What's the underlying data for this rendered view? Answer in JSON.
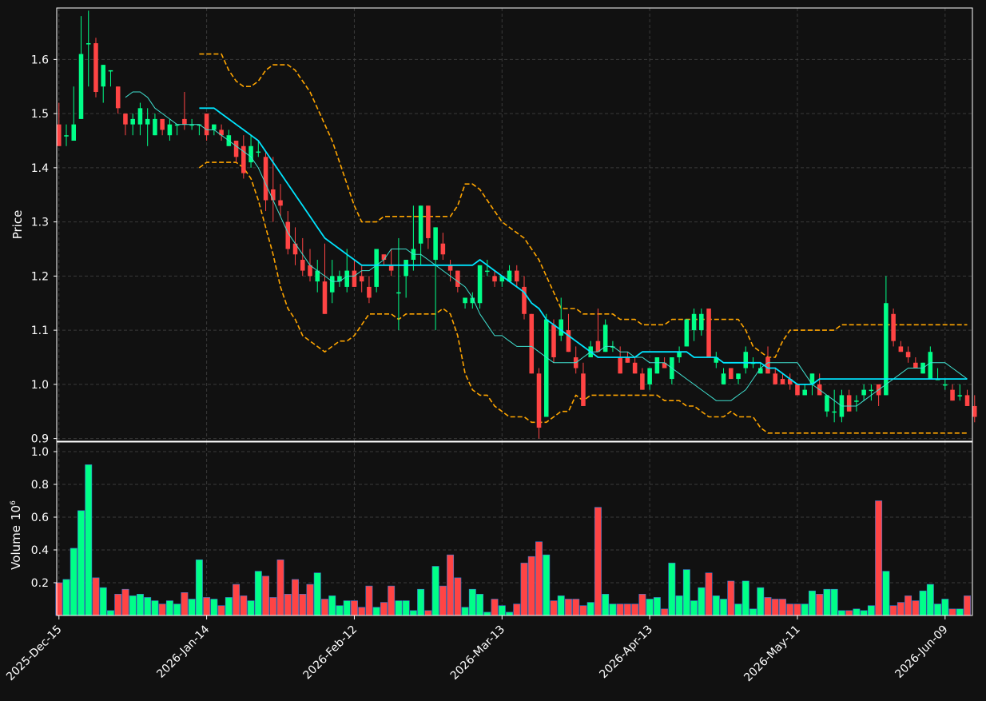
{
  "colors": {
    "background": "#111111",
    "up": "#00ff88",
    "down": "#ff4444",
    "grid": "#3a3a3a",
    "axis": "#ffffff",
    "text": "#ffffff",
    "sma_fast": "#40e0d0",
    "sma_slow": "#00e5ff",
    "bollinger": "#ffa500"
  },
  "chart_data": {
    "type": "candlestick",
    "ylabel_price": "Price",
    "ylabel_volume": "Volume",
    "volume_exponent": "6",
    "grid": true,
    "price_ylim": [
      0.895,
      1.695
    ],
    "price_yticks": [
      "0.9",
      "1.0",
      "1.1",
      "1.2",
      "1.3",
      "1.4",
      "1.5",
      "1.6"
    ],
    "volume_ylim": [
      0,
      1.0
    ],
    "volume_yticks": [
      "0.2",
      "0.4",
      "0.6",
      "0.8",
      "1.0"
    ],
    "xtick_labels": [
      {
        "index": 0,
        "label": "2025-Dec-15"
      },
      {
        "index": 20,
        "label": "2026-Jan-14"
      },
      {
        "index": 40,
        "label": "2026-Feb-12"
      },
      {
        "index": 60,
        "label": "2026-Mar-13"
      },
      {
        "index": 80,
        "label": "2026-Apr-13"
      },
      {
        "index": 100,
        "label": "2026-May-11"
      },
      {
        "index": 120,
        "label": "2026-Jun-09"
      }
    ],
    "x_range": [
      -0.3,
      123.7
    ],
    "ohlc": [
      [
        1.48,
        1.52,
        1.44,
        1.44
      ],
      [
        1.46,
        1.48,
        1.44,
        1.46
      ],
      [
        1.45,
        1.55,
        1.45,
        1.48
      ],
      [
        1.49,
        1.68,
        1.49,
        1.61
      ],
      [
        1.63,
        1.69,
        1.55,
        1.63
      ],
      [
        1.63,
        1.64,
        1.53,
        1.54
      ],
      [
        1.55,
        1.59,
        1.52,
        1.59
      ],
      [
        1.58,
        1.58,
        1.55,
        1.58
      ],
      [
        1.55,
        1.55,
        1.5,
        1.51
      ],
      [
        1.5,
        1.5,
        1.46,
        1.48
      ],
      [
        1.48,
        1.5,
        1.46,
        1.49
      ],
      [
        1.48,
        1.52,
        1.46,
        1.51
      ],
      [
        1.48,
        1.51,
        1.44,
        1.49
      ],
      [
        1.46,
        1.5,
        1.46,
        1.49
      ],
      [
        1.49,
        1.49,
        1.46,
        1.47
      ],
      [
        1.46,
        1.49,
        1.45,
        1.48
      ],
      [
        1.48,
        1.48,
        1.46,
        1.48
      ],
      [
        1.49,
        1.54,
        1.47,
        1.48
      ],
      [
        1.48,
        1.49,
        1.47,
        1.48
      ],
      [
        1.48,
        1.48,
        1.46,
        1.48
      ],
      [
        1.5,
        1.5,
        1.45,
        1.46
      ],
      [
        1.47,
        1.48,
        1.46,
        1.48
      ],
      [
        1.47,
        1.48,
        1.45,
        1.46
      ],
      [
        1.44,
        1.47,
        1.44,
        1.46
      ],
      [
        1.45,
        1.45,
        1.41,
        1.42
      ],
      [
        1.44,
        1.46,
        1.38,
        1.39
      ],
      [
        1.41,
        1.46,
        1.4,
        1.44
      ],
      [
        1.43,
        1.45,
        1.42,
        1.43
      ],
      [
        1.42,
        1.43,
        1.32,
        1.34
      ],
      [
        1.36,
        1.42,
        1.3,
        1.34
      ],
      [
        1.34,
        1.37,
        1.31,
        1.33
      ],
      [
        1.3,
        1.32,
        1.24,
        1.25
      ],
      [
        1.26,
        1.29,
        1.22,
        1.24
      ],
      [
        1.23,
        1.27,
        1.2,
        1.21
      ],
      [
        1.22,
        1.25,
        1.19,
        1.2
      ],
      [
        1.19,
        1.23,
        1.17,
        1.21
      ],
      [
        1.19,
        1.26,
        1.13,
        1.13
      ],
      [
        1.17,
        1.23,
        1.15,
        1.2
      ],
      [
        1.19,
        1.21,
        1.18,
        1.2
      ],
      [
        1.18,
        1.25,
        1.17,
        1.21
      ],
      [
        1.21,
        1.23,
        1.18,
        1.18
      ],
      [
        1.2,
        1.22,
        1.17,
        1.19
      ],
      [
        1.18,
        1.2,
        1.15,
        1.16
      ],
      [
        1.18,
        1.25,
        1.17,
        1.25
      ],
      [
        1.24,
        1.24,
        1.22,
        1.23
      ],
      [
        1.22,
        1.25,
        1.2,
        1.21
      ],
      [
        1.17,
        1.27,
        1.1,
        1.17
      ],
      [
        1.2,
        1.23,
        1.16,
        1.23
      ],
      [
        1.23,
        1.33,
        1.21,
        1.25
      ],
      [
        1.26,
        1.33,
        1.22,
        1.33
      ],
      [
        1.33,
        1.33,
        1.25,
        1.27
      ],
      [
        1.23,
        1.29,
        1.1,
        1.29
      ],
      [
        1.26,
        1.28,
        1.23,
        1.24
      ],
      [
        1.22,
        1.23,
        1.19,
        1.21
      ],
      [
        1.21,
        1.21,
        1.17,
        1.18
      ],
      [
        1.15,
        1.16,
        1.14,
        1.16
      ],
      [
        1.15,
        1.17,
        1.14,
        1.16
      ],
      [
        1.15,
        1.22,
        1.14,
        1.22
      ],
      [
        1.21,
        1.23,
        1.2,
        1.21
      ],
      [
        1.2,
        1.21,
        1.18,
        1.19
      ],
      [
        1.19,
        1.2,
        1.18,
        1.2
      ],
      [
        1.19,
        1.22,
        1.19,
        1.21
      ],
      [
        1.21,
        1.22,
        1.18,
        1.19
      ],
      [
        1.18,
        1.2,
        1.12,
        1.13
      ],
      [
        1.13,
        1.13,
        1.02,
        1.02
      ],
      [
        1.02,
        1.03,
        0.9,
        0.92
      ],
      [
        0.94,
        1.13,
        0.94,
        1.12
      ],
      [
        1.11,
        1.12,
        1.04,
        1.05
      ],
      [
        1.09,
        1.16,
        1.08,
        1.12
      ],
      [
        1.1,
        1.13,
        1.06,
        1.06
      ],
      [
        1.05,
        1.07,
        1.02,
        1.03
      ],
      [
        1.02,
        1.04,
        0.96,
        0.96
      ],
      [
        1.05,
        1.08,
        1.05,
        1.07
      ],
      [
        1.08,
        1.14,
        1.06,
        1.06
      ],
      [
        1.06,
        1.12,
        1.06,
        1.11
      ],
      [
        1.07,
        1.08,
        1.06,
        1.07
      ],
      [
        1.05,
        1.07,
        1.02,
        1.02
      ],
      [
        1.05,
        1.06,
        1.04,
        1.04
      ],
      [
        1.04,
        1.05,
        1.02,
        1.02
      ],
      [
        1.02,
        1.03,
        0.99,
        0.99
      ],
      [
        1.0,
        1.03,
        0.99,
        1.03
      ],
      [
        1.02,
        1.05,
        1.02,
        1.05
      ],
      [
        1.04,
        1.05,
        1.03,
        1.03
      ],
      [
        1.01,
        1.05,
        1.0,
        1.05
      ],
      [
        1.05,
        1.07,
        1.04,
        1.06
      ],
      [
        1.07,
        1.12,
        1.07,
        1.12
      ],
      [
        1.1,
        1.14,
        1.08,
        1.13
      ],
      [
        1.1,
        1.14,
        1.09,
        1.13
      ],
      [
        1.14,
        1.14,
        1.05,
        1.05
      ],
      [
        1.04,
        1.06,
        1.03,
        1.05
      ],
      [
        1.0,
        1.03,
        1.0,
        1.02
      ],
      [
        1.03,
        1.03,
        1.01,
        1.01
      ],
      [
        1.01,
        1.02,
        1.0,
        1.02
      ],
      [
        1.03,
        1.07,
        1.02,
        1.06
      ],
      [
        1.04,
        1.05,
        1.03,
        1.04
      ],
      [
        1.02,
        1.04,
        1.02,
        1.03
      ],
      [
        1.05,
        1.07,
        1.02,
        1.02
      ],
      [
        1.02,
        1.03,
        1.0,
        1.0
      ],
      [
        1.01,
        1.02,
        1.0,
        1.0
      ],
      [
        1.01,
        1.02,
        0.99,
        1.0
      ],
      [
        1.0,
        1.0,
        0.98,
        0.98
      ],
      [
        0.98,
        1.0,
        0.98,
        0.99
      ],
      [
        1.0,
        1.02,
        0.98,
        1.02
      ],
      [
        1.0,
        1.02,
        0.98,
        0.98
      ],
      [
        0.95,
        0.98,
        0.94,
        0.98
      ],
      [
        0.95,
        0.99,
        0.93,
        0.95
      ],
      [
        0.94,
        0.99,
        0.93,
        0.98
      ],
      [
        0.98,
        0.99,
        0.95,
        0.95
      ],
      [
        0.97,
        0.98,
        0.95,
        0.97
      ],
      [
        0.98,
        1.0,
        0.97,
        0.99
      ],
      [
        0.99,
        1.0,
        0.97,
        0.99
      ],
      [
        1.0,
        1.0,
        0.96,
        0.98
      ],
      [
        0.98,
        1.2,
        0.98,
        1.15
      ],
      [
        1.13,
        1.14,
        1.07,
        1.08
      ],
      [
        1.07,
        1.08,
        1.06,
        1.06
      ],
      [
        1.06,
        1.07,
        1.04,
        1.05
      ],
      [
        1.04,
        1.05,
        1.03,
        1.03
      ],
      [
        1.02,
        1.04,
        1.02,
        1.04
      ],
      [
        1.01,
        1.07,
        1.01,
        1.06
      ],
      [
        1.01,
        1.03,
        1.01,
        1.01
      ],
      [
        1.0,
        1.01,
        0.99,
        1.0
      ],
      [
        0.99,
        1.0,
        0.97,
        0.97
      ],
      [
        0.98,
        1.0,
        0.97,
        0.98
      ],
      [
        0.98,
        0.99,
        0.96,
        0.96
      ],
      [
        0.96,
        0.98,
        0.93,
        0.94
      ]
    ],
    "volume": [
      0.2,
      0.22,
      0.41,
      0.64,
      0.92,
      0.23,
      0.17,
      0.03,
      0.13,
      0.16,
      0.12,
      0.13,
      0.11,
      0.09,
      0.07,
      0.09,
      0.07,
      0.14,
      0.1,
      0.34,
      0.11,
      0.1,
      0.06,
      0.11,
      0.19,
      0.12,
      0.09,
      0.27,
      0.24,
      0.11,
      0.34,
      0.13,
      0.22,
      0.13,
      0.19,
      0.26,
      0.1,
      0.12,
      0.06,
      0.09,
      0.09,
      0.05,
      0.18,
      0.05,
      0.08,
      0.18,
      0.09,
      0.09,
      0.03,
      0.16,
      0.03,
      0.3,
      0.18,
      0.37,
      0.23,
      0.05,
      0.16,
      0.13,
      0.02,
      0.1,
      0.06,
      0.02,
      0.07,
      0.32,
      0.36,
      0.45,
      0.37,
      0.09,
      0.12,
      0.1,
      0.1,
      0.06,
      0.08,
      0.66,
      0.13,
      0.07,
      0.07,
      0.07,
      0.07,
      0.13,
      0.1,
      0.11,
      0.04,
      0.32,
      0.12,
      0.28,
      0.09,
      0.17,
      0.26,
      0.12,
      0.1,
      0.21,
      0.07,
      0.21,
      0.04,
      0.17,
      0.11,
      0.1,
      0.1,
      0.07,
      0.07,
      0.07,
      0.15,
      0.13,
      0.16,
      0.16,
      0.03,
      0.03,
      0.04,
      0.03,
      0.06,
      0.7,
      0.27,
      0.06,
      0.08,
      0.12,
      0.09,
      0.15,
      0.19,
      0.07,
      0.1,
      0.04,
      0.04,
      0.12
    ],
    "sma_fast_start": 9,
    "sma_fast": [
      1.53,
      1.54,
      1.54,
      1.53,
      1.51,
      1.5,
      1.49,
      1.48,
      1.48,
      1.48,
      1.48,
      1.47,
      1.47,
      1.46,
      1.45,
      1.44,
      1.43,
      1.42,
      1.4,
      1.37,
      1.34,
      1.31,
      1.28,
      1.26,
      1.24,
      1.22,
      1.21,
      1.2,
      1.19,
      1.19,
      1.2,
      1.2,
      1.21,
      1.21,
      1.22,
      1.23,
      1.25,
      1.25,
      1.25,
      1.24,
      1.24,
      1.23,
      1.22,
      1.21,
      1.2,
      1.19,
      1.18,
      1.16,
      1.13,
      1.11,
      1.09,
      1.09,
      1.08,
      1.07,
      1.07,
      1.07,
      1.06,
      1.05,
      1.04,
      1.04,
      1.04,
      1.04,
      1.05,
      1.06,
      1.06,
      1.07,
      1.07,
      1.06,
      1.06,
      1.05,
      1.05,
      1.04,
      1.04,
      1.04,
      1.03,
      1.02,
      1.01,
      1.0,
      0.99,
      0.98,
      0.97,
      0.97,
      0.97,
      0.98,
      0.99,
      1.01,
      1.03,
      1.04,
      1.04,
      1.04,
      1.04,
      1.04,
      1.02,
      1.0,
      0.99,
      0.98,
      0.97,
      0.96,
      0.96,
      0.96,
      0.97,
      0.98,
      0.99,
      1.0,
      1.01,
      1.02,
      1.03,
      1.03,
      1.03,
      1.04,
      1.04,
      1.04,
      1.03,
      1.02,
      1.01
    ],
    "sma_slow_start": 19,
    "sma_slow": [
      1.51,
      1.51,
      1.51,
      1.5,
      1.49,
      1.48,
      1.47,
      1.46,
      1.45,
      1.43,
      1.41,
      1.39,
      1.37,
      1.35,
      1.33,
      1.31,
      1.29,
      1.27,
      1.26,
      1.25,
      1.24,
      1.23,
      1.22,
      1.22,
      1.22,
      1.22,
      1.22,
      1.22,
      1.22,
      1.22,
      1.22,
      1.22,
      1.22,
      1.22,
      1.22,
      1.22,
      1.22,
      1.22,
      1.23,
      1.22,
      1.21,
      1.2,
      1.19,
      1.18,
      1.17,
      1.15,
      1.14,
      1.12,
      1.11,
      1.1,
      1.09,
      1.08,
      1.07,
      1.06,
      1.05,
      1.05,
      1.05,
      1.05,
      1.05,
      1.05,
      1.06,
      1.06,
      1.06,
      1.06,
      1.06,
      1.06,
      1.06,
      1.05,
      1.05,
      1.05,
      1.05,
      1.04,
      1.04,
      1.04,
      1.04,
      1.04,
      1.04,
      1.03,
      1.03,
      1.02,
      1.01,
      1.0,
      1.0,
      1.0,
      1.01,
      1.01,
      1.01,
      1.01,
      1.01,
      1.01,
      1.01,
      1.01,
      1.01,
      1.01,
      1.01,
      1.01,
      1.01,
      1.01,
      1.01,
      1.01,
      1.01,
      1.01,
      1.01,
      1.01,
      1.01
    ],
    "bb_start": 19,
    "bb_upper": [
      1.61,
      1.61,
      1.61,
      1.61,
      1.58,
      1.56,
      1.55,
      1.55,
      1.56,
      1.58,
      1.59,
      1.59,
      1.59,
      1.58,
      1.56,
      1.54,
      1.51,
      1.48,
      1.45,
      1.41,
      1.37,
      1.33,
      1.3,
      1.3,
      1.3,
      1.31,
      1.31,
      1.31,
      1.31,
      1.31,
      1.31,
      1.31,
      1.31,
      1.31,
      1.31,
      1.33,
      1.37,
      1.37,
      1.36,
      1.34,
      1.32,
      1.3,
      1.29,
      1.28,
      1.27,
      1.25,
      1.23,
      1.2,
      1.17,
      1.14,
      1.14,
      1.14,
      1.13,
      1.13,
      1.13,
      1.13,
      1.13,
      1.12,
      1.12,
      1.12,
      1.11,
      1.11,
      1.11,
      1.11,
      1.12,
      1.12,
      1.12,
      1.12,
      1.12,
      1.12,
      1.12,
      1.12,
      1.12,
      1.12,
      1.1,
      1.07,
      1.06,
      1.05,
      1.05,
      1.08,
      1.1,
      1.1,
      1.1,
      1.1,
      1.1,
      1.1,
      1.1,
      1.11,
      1.11,
      1.11,
      1.11,
      1.11,
      1.11,
      1.11,
      1.11,
      1.11,
      1.11,
      1.11,
      1.11,
      1.11,
      1.11,
      1.11,
      1.11,
      1.11,
      1.11
    ],
    "bb_lower": [
      1.4,
      1.41,
      1.41,
      1.41,
      1.41,
      1.41,
      1.4,
      1.38,
      1.34,
      1.29,
      1.24,
      1.18,
      1.14,
      1.12,
      1.09,
      1.08,
      1.07,
      1.06,
      1.07,
      1.08,
      1.08,
      1.09,
      1.11,
      1.13,
      1.13,
      1.13,
      1.13,
      1.12,
      1.13,
      1.13,
      1.13,
      1.13,
      1.13,
      1.14,
      1.13,
      1.09,
      1.02,
      0.99,
      0.98,
      0.98,
      0.96,
      0.95,
      0.94,
      0.94,
      0.94,
      0.93,
      0.93,
      0.93,
      0.94,
      0.95,
      0.95,
      0.98,
      0.97,
      0.98,
      0.98,
      0.98,
      0.98,
      0.98,
      0.98,
      0.98,
      0.98,
      0.98,
      0.98,
      0.97,
      0.97,
      0.97,
      0.96,
      0.96,
      0.95,
      0.94,
      0.94,
      0.94,
      0.95,
      0.94,
      0.94,
      0.94,
      0.92,
      0.91,
      0.91,
      0.91,
      0.91,
      0.91,
      0.91,
      0.91,
      0.91,
      0.91,
      0.91,
      0.91,
      0.91,
      0.91,
      0.91,
      0.91,
      0.91,
      0.91,
      0.91,
      0.91,
      0.91,
      0.91,
      0.91,
      0.91,
      0.91,
      0.91,
      0.91,
      0.91,
      0.91
    ]
  }
}
